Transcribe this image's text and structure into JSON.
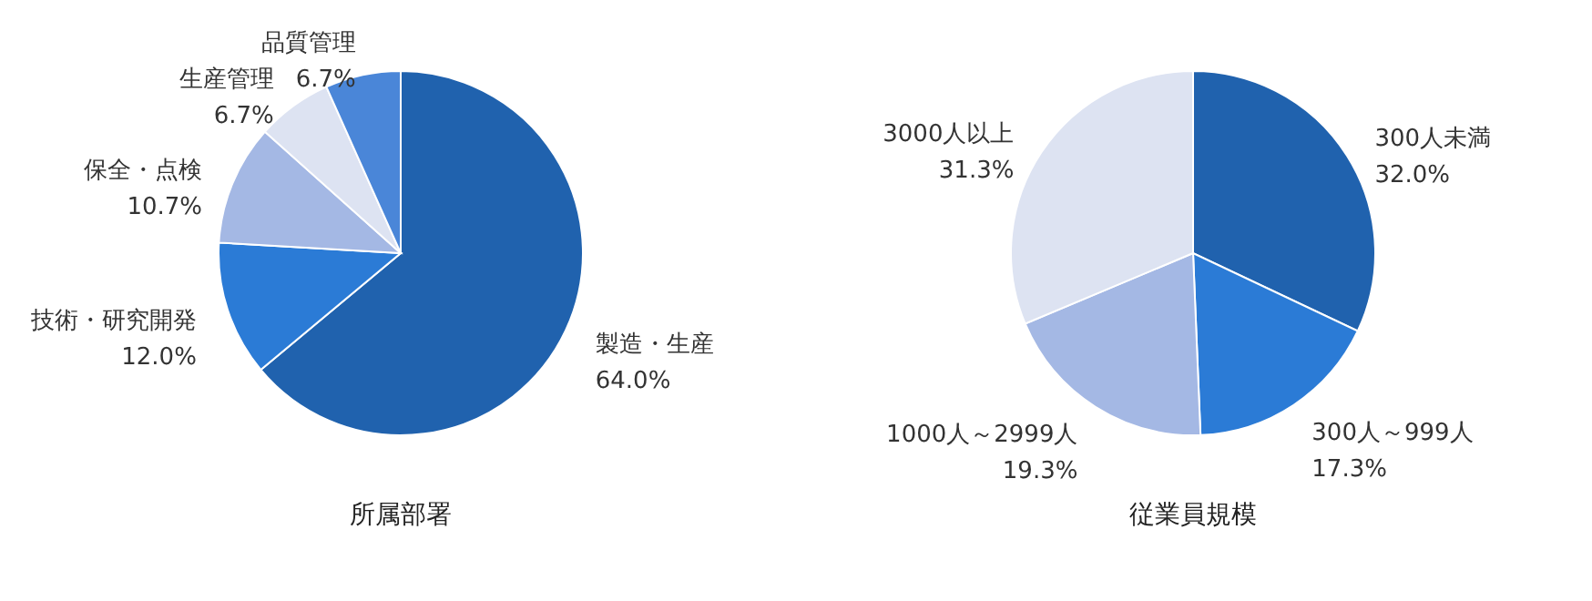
{
  "chart_data": [
    {
      "type": "pie",
      "title": "所属部署",
      "categories": [
        "製造・生産",
        "技術・研究開発",
        "保全・点検",
        "生産管理",
        "品質管理"
      ],
      "values": [
        64.0,
        12.0,
        10.7,
        6.7,
        6.7
      ],
      "value_labels": [
        "64.0%",
        "12.0%",
        "10.7%",
        "6.7%",
        "6.7%"
      ],
      "colors": [
        "#2062ae",
        "#2b7bd6",
        "#a4b8e4",
        "#dde3f2",
        "#4a86d8"
      ],
      "legend": false
    },
    {
      "type": "pie",
      "title": "従業員規模",
      "categories": [
        "300人未満",
        "300人～999人",
        "1000人～2999人",
        "3000人以上"
      ],
      "values": [
        32.0,
        17.3,
        19.3,
        31.3
      ],
      "value_labels": [
        "32.0%",
        "17.3%",
        "19.3%",
        "31.3%"
      ],
      "colors": [
        "#2062ae",
        "#2b7bd6",
        "#a4b8e4",
        "#dde3f2"
      ],
      "legend": false
    }
  ]
}
